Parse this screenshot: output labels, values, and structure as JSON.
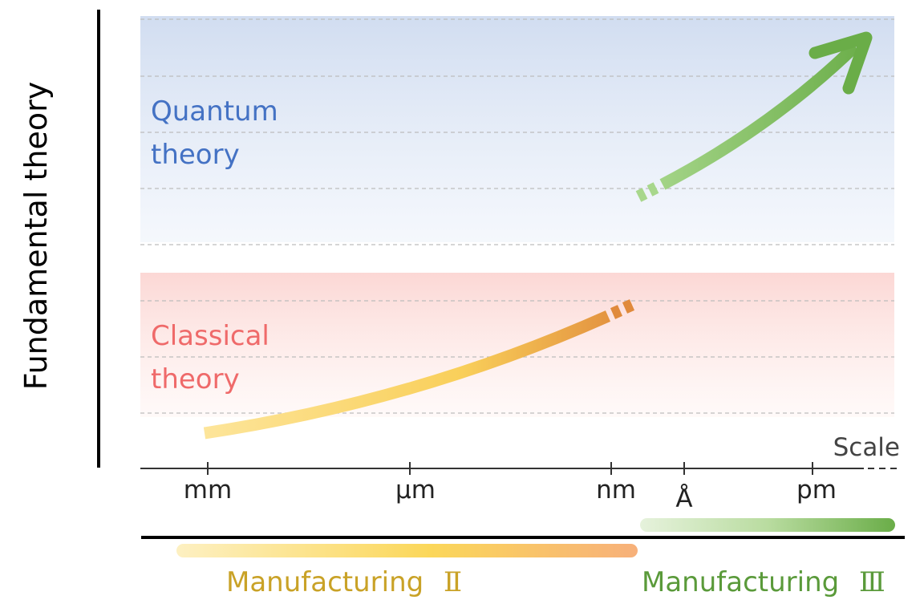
{
  "vertical_axis": {
    "title": "Fundamental theory"
  },
  "regions": [
    {
      "id": "quantum",
      "line1": "Quantum",
      "line2": "theory",
      "color": "#4472c4"
    },
    {
      "id": "classical",
      "line1": "Classical",
      "line2": "theory",
      "color": "#ef6a6a"
    }
  ],
  "scale_axis": {
    "title": "Scale",
    "ticks": [
      "mm",
      "µm",
      "nm",
      "Å",
      "pm"
    ]
  },
  "manufacturing": [
    {
      "id": "m2",
      "label": "Manufacturing",
      "numeral": "Ⅱ",
      "color": "#c9a227"
    },
    {
      "id": "m3",
      "label": "Manufacturing",
      "numeral": "Ⅲ",
      "color": "#5a9a3a"
    }
  ],
  "colors": {
    "quantum_blue": "#4472c4",
    "classical_red": "#ff2a1a",
    "classical_curve_start": "#fde59a",
    "classical_curve_end": "#e08a3c",
    "quantum_arrow": "#70b050",
    "axis": "#000000"
  }
}
